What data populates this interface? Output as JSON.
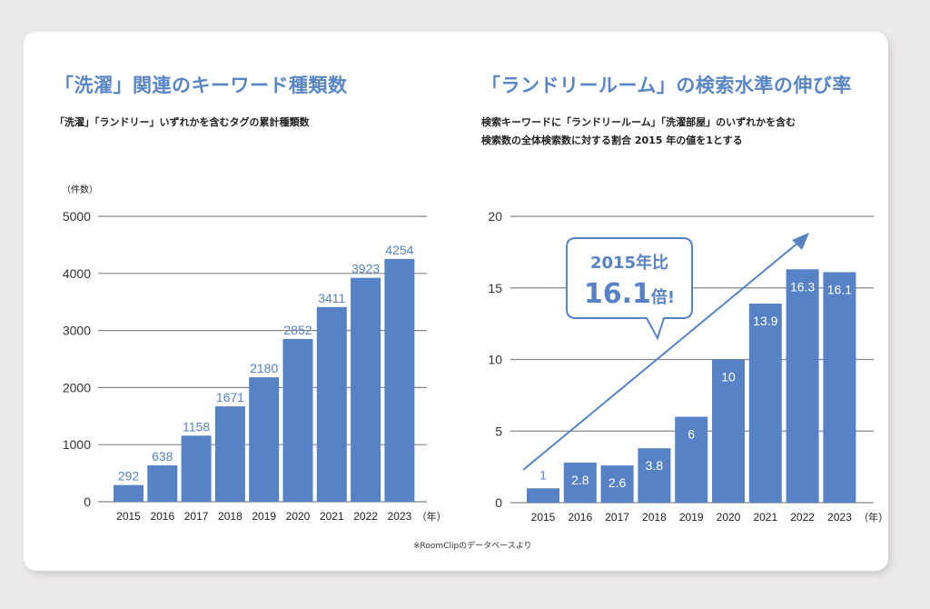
{
  "colors": {
    "bar": "#5783c6",
    "title": "#5a86c6",
    "grid": "#8a8584",
    "background": "#ece9e9"
  },
  "left": {
    "title": "「洗濯」関連のキーワード種類数",
    "subtitle": "「洗濯」「ランドリー」いずれかを含むタグの累計種類数",
    "unit_label": "（件数）"
  },
  "right": {
    "title": "「ランドリールーム」の検索水準の伸び率",
    "subtitle_lines": [
      "検索キーワードに「ランドリールーム」「洗濯部屋」のいずれかを含む",
      "検索数の全体検索数に対する割合 2015 年の値を1とする"
    ],
    "callout_line1": "2015年比",
    "callout_value": "16.1",
    "callout_suffix": "倍!"
  },
  "source_note": "※RoomClipのデータベースより",
  "chart_data": [
    {
      "type": "bar",
      "title": "「洗濯」関連のキーワード種類数",
      "xlabel": "（年）",
      "ylabel": "（件数）",
      "categories": [
        "2015",
        "2016",
        "2017",
        "2018",
        "2019",
        "2020",
        "2021",
        "2022",
        "2023"
      ],
      "values": [
        292,
        638,
        1158,
        1671,
        2180,
        2852,
        3411,
        3923,
        4254
      ],
      "ylim": [
        0,
        5000
      ],
      "yticks": [
        0,
        1000,
        2000,
        3000,
        4000,
        5000
      ],
      "grid": true,
      "labels_position": "above"
    },
    {
      "type": "bar",
      "title": "「ランドリールーム」の検索水準の伸び率",
      "xlabel": "（年）",
      "ylabel": "",
      "categories": [
        "2015",
        "2016",
        "2017",
        "2018",
        "2019",
        "2020",
        "2021",
        "2022",
        "2023"
      ],
      "values": [
        1,
        2.8,
        2.6,
        3.8,
        6,
        10,
        13.9,
        16.3,
        16.1
      ],
      "value_labels": [
        "1",
        "2.8",
        "2.6",
        "3.8",
        "6",
        "10",
        "13.9",
        "16.3",
        "16.1"
      ],
      "ylim": [
        0,
        20
      ],
      "yticks": [
        0,
        5,
        10,
        15,
        20
      ],
      "grid": true,
      "labels_position": "inside",
      "annotation": "2015年比 16.1倍!"
    }
  ]
}
